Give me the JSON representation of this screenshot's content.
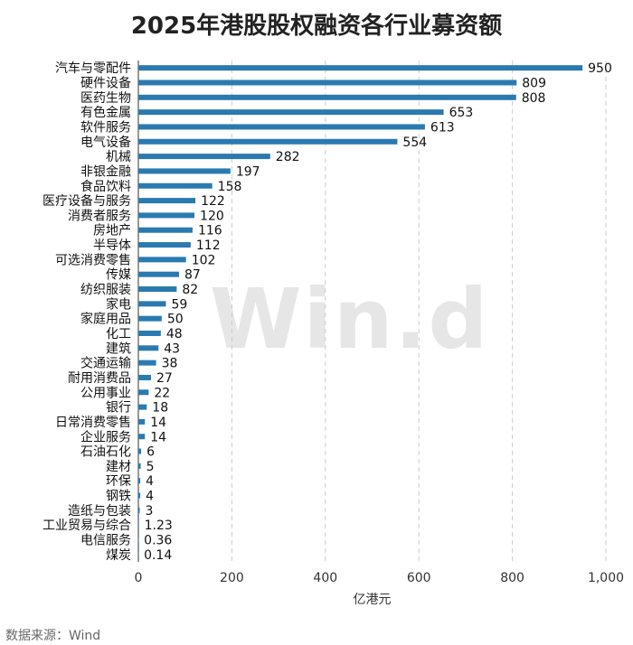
{
  "title": "2025年港股股权融资各行业募资额",
  "source": "数据来源：Wind",
  "watermark": "Win.d",
  "colors": {
    "bar": "#2a7ab0",
    "grid": "#cccccc",
    "axis": "#333333"
  },
  "chart_data": {
    "type": "bar",
    "orientation": "horizontal",
    "title": "2025年港股股权融资各行业募资额",
    "xlabel": "亿港元",
    "ylabel": "",
    "xlim": [
      0,
      1000
    ],
    "xticks": [
      0,
      200,
      400,
      600,
      800,
      1000
    ],
    "xtick_labels": [
      "0",
      "200",
      "400",
      "600",
      "800",
      "1,000"
    ],
    "grid": "vertical dashed",
    "categories": [
      "汽车与零配件",
      "硬件设备",
      "医药生物",
      "有色金属",
      "软件服务",
      "电气设备",
      "机械",
      "非银金融",
      "食品饮料",
      "医疗设备与服务",
      "消费者服务",
      "房地产",
      "半导体",
      "可选消费零售",
      "传媒",
      "纺织服装",
      "家电",
      "家庭用品",
      "化工",
      "建筑",
      "交通运输",
      "耐用消费品",
      "公用事业",
      "银行",
      "日常消费零售",
      "企业服务",
      "石油石化",
      "建材",
      "环保",
      "钢铁",
      "造纸与包装",
      "工业贸易与综合",
      "电信服务",
      "煤炭"
    ],
    "values": [
      950,
      809,
      808,
      653,
      613,
      554,
      282,
      197,
      158,
      122,
      120,
      116,
      112,
      102,
      87,
      82,
      59,
      50,
      48,
      43,
      38,
      27,
      22,
      18,
      14,
      14,
      6,
      5,
      4,
      4,
      3,
      1.23,
      0.36,
      0.14
    ],
    "value_labels": [
      "950",
      "809",
      "808",
      "653",
      "613",
      "554",
      "282",
      "197",
      "158",
      "122",
      "120",
      "116",
      "112",
      "102",
      "87",
      "82",
      "59",
      "50",
      "48",
      "43",
      "38",
      "27",
      "22",
      "18",
      "14",
      "14",
      "6",
      "5",
      "4",
      "4",
      "3",
      "1.23",
      "0.36",
      "0.14"
    ]
  }
}
